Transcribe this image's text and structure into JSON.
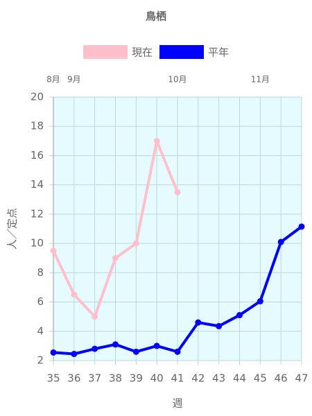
{
  "chart_data": {
    "type": "line",
    "title": "鳥栖",
    "x_label": "週",
    "y_label": "人／定点",
    "x": [
      35,
      36,
      37,
      38,
      39,
      40,
      41,
      42,
      43,
      44,
      45,
      46,
      47
    ],
    "series": [
      {
        "name": "現在",
        "color": "#ffc0cb",
        "values": [
          9.5,
          6.5,
          5.0,
          9.0,
          10.0,
          17.0,
          13.5,
          null,
          null,
          null,
          null,
          null,
          null
        ]
      },
      {
        "name": "平年",
        "color": "#0000ff",
        "values": [
          2.55,
          2.45,
          2.8,
          3.1,
          2.6,
          3.0,
          2.6,
          4.6,
          4.35,
          5.1,
          6.05,
          10.1,
          11.15
        ]
      }
    ],
    "xlim": [
      35,
      47
    ],
    "xticks": [
      35,
      36,
      37,
      38,
      39,
      40,
      41,
      42,
      43,
      44,
      45,
      46,
      47
    ],
    "x2ticks": [
      {
        "value": 35,
        "label": "8月"
      },
      {
        "value": 36,
        "label": "9月"
      },
      {
        "value": 41,
        "label": "10月"
      },
      {
        "value": 45,
        "label": "11月"
      }
    ],
    "ylim": [
      2,
      20
    ],
    "yticks": [
      2,
      4,
      6,
      8,
      10,
      12,
      14,
      16,
      18,
      20
    ],
    "grid": true,
    "background": "#e6fbff"
  }
}
